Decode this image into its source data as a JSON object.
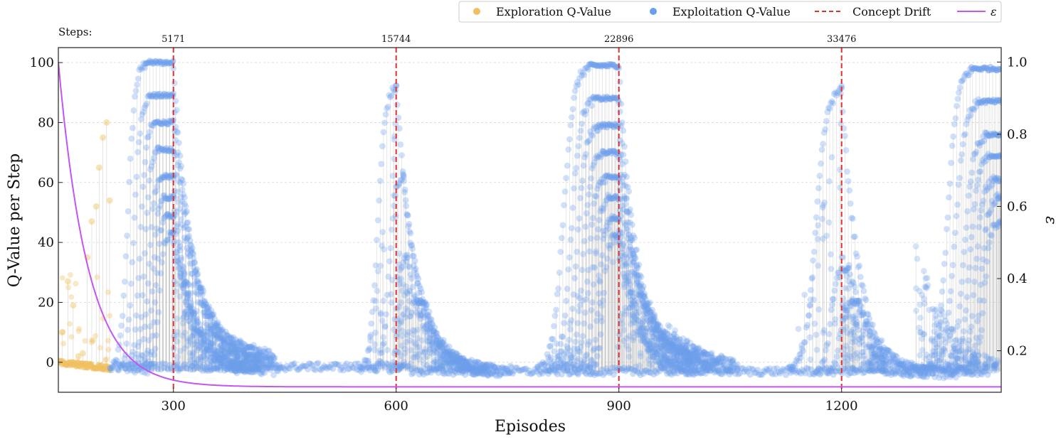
{
  "chart_data": {
    "type": "scatter",
    "xlabel": "Episodes",
    "ylabel": "Q-Value per Step",
    "y2label": "ε",
    "steps_label": "Steps:",
    "xlim": [
      145,
      1415
    ],
    "ylim": [
      -10,
      105
    ],
    "y2lim": [
      0.085,
      1.04
    ],
    "x_ticks": [
      300,
      600,
      900,
      1200
    ],
    "y_ticks": [
      0,
      20,
      40,
      60,
      80,
      100
    ],
    "y2_ticks": [
      0.2,
      0.4,
      0.6,
      0.8,
      1.0
    ],
    "y2_tick_labels": [
      "0.2",
      "0.4",
      "0.6",
      "0.8",
      "1.0"
    ],
    "grid": "horizontal dashed",
    "legend_position": "top-right, outside plot",
    "legend": [
      {
        "label": "Exploration Q-Value",
        "kind": "marker",
        "color": "#f0c060"
      },
      {
        "label": "Exploitation Q-Value",
        "kind": "marker",
        "color": "#6d9eeb"
      },
      {
        "label": "Concept Drift",
        "kind": "dashed-line",
        "color": "#e03030"
      },
      {
        "label": "ε",
        "kind": "line",
        "color": "#c455f0"
      }
    ],
    "concept_drift": [
      {
        "episode": 300,
        "steps": "5171"
      },
      {
        "episode": 600,
        "steps": "15744"
      },
      {
        "episode": 900,
        "steps": "22896"
      },
      {
        "episode": 1200,
        "steps": "33476"
      }
    ],
    "series": [
      {
        "name": "Exploitation Q-Value",
        "color": "#6d9eeb",
        "bands": [
          {
            "rise_start": 215,
            "plateau_start": 262,
            "peak": 100,
            "end": 300,
            "decay_to": 3
          },
          {
            "rise_start": 225,
            "plateau_start": 268,
            "peak": 89,
            "end": 300,
            "decay_to": 2
          },
          {
            "rise_start": 235,
            "plateau_start": 275,
            "peak": 80,
            "end": 300,
            "decay_to": 1
          },
          {
            "rise_start": 242,
            "plateau_start": 280,
            "peak": 71,
            "end": 300,
            "decay_to": 0
          },
          {
            "rise_start": 248,
            "plateau_start": 285,
            "peak": 62,
            "end": 300,
            "decay_to": -1
          },
          {
            "rise_start": 255,
            "plateau_start": 289,
            "peak": 55,
            "end": 300,
            "decay_to": -2
          },
          {
            "rise_start": 260,
            "plateau_start": 292,
            "peak": 49,
            "end": 300,
            "decay_to": -2.5
          },
          {
            "rise_start": 265,
            "plateau_start": 296,
            "peak": 43,
            "end": 300,
            "decay_to": -3
          },
          {
            "rise_start": 550,
            "plateau_start": 600,
            "peak": 92,
            "end": 600,
            "decay_to": -3
          },
          {
            "rise_start": 570,
            "plateau_start": 610,
            "peak": 62,
            "end": 610,
            "decay_to": -3
          },
          {
            "rise_start": 590,
            "plateau_start": 615,
            "peak": 35,
            "end": 615,
            "decay_to": -3
          },
          {
            "rise_start": 600,
            "plateau_start": 630,
            "peak": 20,
            "end": 640,
            "decay_to": -3
          },
          {
            "rise_start": 790,
            "plateau_start": 860,
            "peak": 99,
            "end": 900,
            "decay_to": 3
          },
          {
            "rise_start": 805,
            "plateau_start": 866,
            "peak": 88,
            "end": 900,
            "decay_to": 2
          },
          {
            "rise_start": 815,
            "plateau_start": 872,
            "peak": 79,
            "end": 900,
            "decay_to": 1
          },
          {
            "rise_start": 825,
            "plateau_start": 878,
            "peak": 70,
            "end": 900,
            "decay_to": 0
          },
          {
            "rise_start": 835,
            "plateau_start": 882,
            "peak": 62,
            "end": 900,
            "decay_to": -1
          },
          {
            "rise_start": 845,
            "plateau_start": 887,
            "peak": 55,
            "end": 900,
            "decay_to": -2
          },
          {
            "rise_start": 855,
            "plateau_start": 891,
            "peak": 48,
            "end": 900,
            "decay_to": -2.5
          },
          {
            "rise_start": 862,
            "plateau_start": 895,
            "peak": 42,
            "end": 900,
            "decay_to": -3
          },
          {
            "rise_start": 1130,
            "plateau_start": 1200,
            "peak": 91,
            "end": 1200,
            "decay_to": -4
          },
          {
            "rise_start": 1165,
            "plateau_start": 1205,
            "peak": 31,
            "end": 1210,
            "decay_to": -4
          },
          {
            "rise_start": 1180,
            "plateau_start": 1215,
            "peak": 20,
            "end": 1225,
            "decay_to": -4
          },
          {
            "rise_start": 1310,
            "plateau_start": 1375,
            "peak": 98,
            "end": 1415,
            "decay_to": -4
          },
          {
            "rise_start": 1320,
            "plateau_start": 1385,
            "peak": 87,
            "end": 1415,
            "decay_to": -4
          },
          {
            "rise_start": 1335,
            "plateau_start": 1395,
            "peak": 76,
            "end": 1415,
            "decay_to": -4
          },
          {
            "rise_start": 1345,
            "plateau_start": 1400,
            "peak": 69,
            "end": 1415,
            "decay_to": -4
          },
          {
            "rise_start": 1355,
            "plateau_start": 1405,
            "peak": 61,
            "end": 1415,
            "decay_to": -4
          },
          {
            "rise_start": 1365,
            "plateau_start": 1410,
            "peak": 55,
            "end": 1415,
            "decay_to": -4
          },
          {
            "rise_start": 1372,
            "plateau_start": 1412,
            "peak": 47,
            "end": 1415,
            "decay_to": -4
          }
        ]
      },
      {
        "name": "Exploration Q-Value",
        "color": "#f0c060",
        "x": [
          150,
          158,
          165,
          172,
          178,
          184,
          190,
          196,
          200,
          205,
          210,
          214
        ],
        "y": [
          10,
          27,
          19,
          2,
          3,
          35,
          47,
          52,
          65,
          75,
          80,
          54
        ]
      },
      {
        "name": "ε",
        "color": "#c455f0",
        "decay": {
          "start_episode": 145,
          "start_value": 1.0,
          "floor": 0.1,
          "rate": 0.025
        }
      }
    ]
  }
}
